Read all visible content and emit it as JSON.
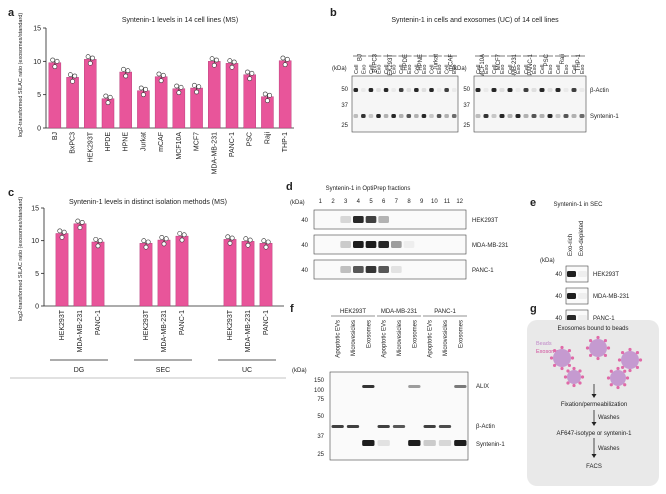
{
  "panels": {
    "a": {
      "label": "a",
      "chart_data": {
        "type": "bar",
        "title": "Syntenin-1 levels in 14 cell lines (MS)",
        "ylabel": "log2-transformed SILAC ratio (exosomes/standard)",
        "ylim": [
          0,
          15
        ],
        "yticks": [
          0,
          5,
          10,
          15
        ],
        "categories": [
          "BJ",
          "BxPC3",
          "HEK293T",
          "HPDE",
          "HPNE",
          "Jurkat",
          "mCAF",
          "MCF10A",
          "MCF7",
          "MDA-MB-231",
          "PANC-1",
          "PSC",
          "Raji",
          "THP-1"
        ],
        "values": [
          9.8,
          7.6,
          10.3,
          4.4,
          8.4,
          5.6,
          7.7,
          5.9,
          6.0,
          10.0,
          9.7,
          8.0,
          4.7,
          10.1
        ],
        "bar_color": "#e8559a"
      }
    },
    "b": {
      "label": "b",
      "title": "Syntenin-1 in cells and exosomes (UC) of 14 cell lines",
      "kda": "(kDa)",
      "left_lines": [
        "BJ",
        "BxPC3",
        "HEK293T",
        "HPDE",
        "HPNE",
        "Jurkat",
        "mCAF"
      ],
      "right_lines": [
        "MCF10A",
        "MCF7",
        "MDA-MB-231",
        "PANC-1",
        "PSC",
        "Raji",
        "THP-1"
      ],
      "cell": "Cell",
      "exo": "Exo",
      "markers": [
        "50",
        "37",
        "25"
      ],
      "bands": [
        "β-Actin",
        "Syntenin-1"
      ]
    },
    "c": {
      "label": "c",
      "chart_data": {
        "type": "bar",
        "title": "Syntenin-1 levels in distinct isolation methods (MS)",
        "ylabel": "log2-transformed SILAC ratio (exosomes/standard)",
        "ylim": [
          0,
          15
        ],
        "yticks": [
          0,
          5,
          10,
          15
        ],
        "groups": [
          "DG",
          "SEC",
          "UC"
        ],
        "categories": [
          "HEK293T",
          "MDA-MB-231",
          "PANC-1",
          "HEK293T",
          "MDA-MB-231",
          "PANC-1",
          "HEK293T",
          "MDA-MB-231",
          "PANC-1"
        ],
        "values": [
          11.1,
          12.6,
          9.8,
          9.6,
          10.1,
          10.7,
          10.2,
          9.9,
          9.6
        ],
        "bar_color": "#e8559a"
      }
    },
    "d": {
      "label": "d",
      "title": "Syntenin-1 in OptiPrep fractions",
      "kda": "(kDa)",
      "fractions": [
        "1",
        "2",
        "3",
        "4",
        "5",
        "6",
        "7",
        "8",
        "9",
        "10",
        "11",
        "12"
      ],
      "rows": [
        {
          "name": "HEK293T",
          "marker": "40"
        },
        {
          "name": "MDA-MB-231",
          "marker": "40"
        },
        {
          "name": "PANC-1",
          "marker": "40"
        }
      ]
    },
    "e": {
      "label": "e",
      "title": "Syntenin-1 in SEC",
      "kda": "(kDa)",
      "columns": [
        "Exo-rich",
        "Exo-depleted"
      ],
      "rows": [
        {
          "name": "HEK293T",
          "marker": "40"
        },
        {
          "name": "MDA-MB-231",
          "marker": "40"
        },
        {
          "name": "PANC-1",
          "marker": "40"
        }
      ]
    },
    "f": {
      "label": "f",
      "kda": "(kDa)",
      "groups": [
        "HEK293T",
        "MDA-MB-231",
        "PANC-1"
      ],
      "lanes": [
        "Apoptotic EVs",
        "Microvesicles",
        "Exosomes"
      ],
      "markers": [
        "150",
        "100",
        "75",
        "50",
        "37",
        "25"
      ],
      "bands": [
        "ALIX",
        "β-Actin",
        "Syntenin-1"
      ]
    },
    "g": {
      "label": "g",
      "title": "Exosomes bound to beads",
      "legend_beads": "Beads",
      "legend_exosomes": "Exosomes",
      "step1": "Fixation/permeabilization",
      "washes1": "Washes",
      "step2": "AF647-isotype or syntenin-1",
      "washes2": "Washes",
      "step3": "FACS"
    }
  }
}
